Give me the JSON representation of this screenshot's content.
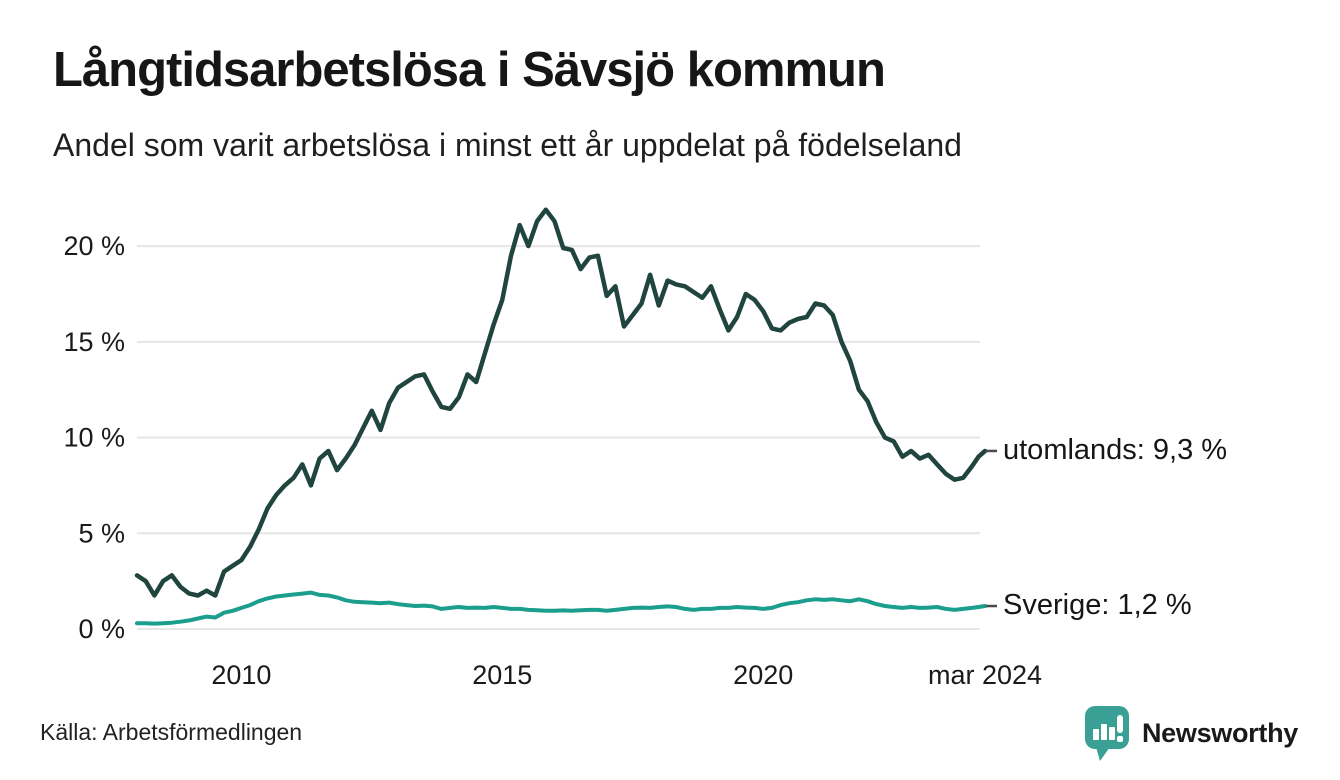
{
  "header": {
    "title": "Långtidsarbetslösa i Sävsjö kommun",
    "subtitle": "Andel som varit arbetslösa i minst ett år uppdelat på födelseland"
  },
  "footer": {
    "source": "Källa: Arbetsförmedlingen",
    "brand": "Newsworthy"
  },
  "colors": {
    "utomlands_line": "#20453e",
    "sverige_line": "#1b9e8e",
    "brand_teal": "#3aa096",
    "brand_text": "#35988f",
    "gridline": "#e6e6e6",
    "axis_text": "#1a1a1a",
    "end_tick": "#4a4a4a",
    "background": "#ffffff"
  },
  "chart_data": {
    "type": "line",
    "title": "Långtidsarbetslösa i Sävsjö kommun",
    "subtitle": "Andel som varit arbetslösa i minst ett år uppdelat på födelseland",
    "xlabel": "",
    "ylabel": "",
    "unit": "%",
    "grid": "horizontal",
    "legend_position": "end-of-line-labels",
    "x_range": [
      2008.0,
      2024.25
    ],
    "ylim": [
      0,
      22.2
    ],
    "y_ticks": [
      {
        "value": 0,
        "label": "0 %"
      },
      {
        "value": 5,
        "label": "5 %"
      },
      {
        "value": 10,
        "label": "10 %"
      },
      {
        "value": 15,
        "label": "15 %"
      },
      {
        "value": 20,
        "label": "20 %"
      }
    ],
    "x_ticks": [
      {
        "value": 2010,
        "label": "2010"
      },
      {
        "value": 2015,
        "label": "2015"
      },
      {
        "value": 2020,
        "label": "2020"
      },
      {
        "value": 2024.25,
        "label": "mar 2024"
      }
    ],
    "x": [
      2008,
      2008.167,
      2008.333,
      2008.5,
      2008.667,
      2008.833,
      2009,
      2009.167,
      2009.333,
      2009.5,
      2009.667,
      2009.833,
      2010,
      2010.167,
      2010.333,
      2010.5,
      2010.667,
      2010.833,
      2011,
      2011.167,
      2011.333,
      2011.5,
      2011.667,
      2011.833,
      2012,
      2012.167,
      2012.333,
      2012.5,
      2012.667,
      2012.833,
      2013,
      2013.167,
      2013.333,
      2013.5,
      2013.667,
      2013.833,
      2014,
      2014.167,
      2014.333,
      2014.5,
      2014.667,
      2014.833,
      2015,
      2015.167,
      2015.333,
      2015.5,
      2015.667,
      2015.833,
      2016,
      2016.167,
      2016.333,
      2016.5,
      2016.667,
      2016.833,
      2017,
      2017.167,
      2017.333,
      2017.5,
      2017.667,
      2017.833,
      2018,
      2018.167,
      2018.333,
      2018.5,
      2018.667,
      2018.833,
      2019,
      2019.167,
      2019.333,
      2019.5,
      2019.667,
      2019.833,
      2020,
      2020.167,
      2020.333,
      2020.5,
      2020.667,
      2020.833,
      2021,
      2021.167,
      2021.333,
      2021.5,
      2021.667,
      2021.833,
      2022,
      2022.167,
      2022.333,
      2022.5,
      2022.667,
      2022.833,
      2023,
      2023.167,
      2023.333,
      2023.5,
      2023.667,
      2023.833,
      2024,
      2024.125,
      2024.25
    ],
    "series": [
      {
        "name": "utomlands",
        "end_label": "utomlands: 9,3 %",
        "last_value": 9.3,
        "color": "#20453e",
        "values": [
          2.8,
          2.5,
          1.75,
          2.5,
          2.8,
          2.2,
          1.85,
          1.75,
          2.0,
          1.75,
          3.0,
          3.3,
          3.6,
          4.3,
          5.2,
          6.3,
          7.0,
          7.5,
          7.9,
          8.6,
          7.5,
          8.9,
          9.3,
          8.3,
          8.9,
          9.6,
          10.5,
          11.4,
          10.4,
          11.8,
          12.6,
          12.9,
          13.2,
          13.3,
          12.4,
          11.6,
          11.5,
          12.1,
          13.3,
          12.9,
          14.4,
          15.9,
          17.2,
          19.5,
          21.1,
          20.0,
          21.3,
          21.9,
          21.3,
          19.9,
          19.8,
          18.8,
          19.4,
          19.5,
          17.4,
          17.9,
          15.8,
          16.4,
          17.0,
          18.5,
          16.9,
          18.2,
          18.0,
          17.9,
          17.6,
          17.3,
          17.9,
          16.7,
          15.6,
          16.3,
          17.5,
          17.2,
          16.6,
          15.7,
          15.6,
          16.0,
          16.2,
          16.3,
          17.0,
          16.9,
          16.4,
          15.0,
          14.0,
          12.5,
          11.9,
          10.8,
          10.0,
          9.8,
          9.0,
          9.3,
          8.9,
          9.1,
          8.6,
          8.1,
          7.8,
          7.9,
          8.5,
          9.0,
          9.3
        ]
      },
      {
        "name": "Sverige",
        "end_label": "Sverige: 1,2 %",
        "last_value": 1.2,
        "color": "#1b9e8e",
        "values": [
          0.3,
          0.3,
          0.28,
          0.3,
          0.33,
          0.38,
          0.45,
          0.55,
          0.65,
          0.6,
          0.85,
          0.95,
          1.1,
          1.25,
          1.45,
          1.6,
          1.7,
          1.75,
          1.8,
          1.85,
          1.9,
          1.78,
          1.75,
          1.65,
          1.5,
          1.42,
          1.4,
          1.38,
          1.35,
          1.38,
          1.3,
          1.25,
          1.2,
          1.22,
          1.18,
          1.05,
          1.1,
          1.15,
          1.1,
          1.12,
          1.1,
          1.15,
          1.1,
          1.05,
          1.05,
          1.0,
          0.98,
          0.95,
          0.95,
          0.97,
          0.95,
          0.98,
          1.0,
          1.0,
          0.95,
          1.0,
          1.05,
          1.1,
          1.12,
          1.1,
          1.15,
          1.18,
          1.15,
          1.05,
          1.0,
          1.05,
          1.05,
          1.1,
          1.1,
          1.15,
          1.12,
          1.1,
          1.05,
          1.1,
          1.25,
          1.35,
          1.4,
          1.5,
          1.55,
          1.52,
          1.55,
          1.5,
          1.45,
          1.55,
          1.45,
          1.3,
          1.2,
          1.15,
          1.1,
          1.15,
          1.1,
          1.12,
          1.15,
          1.05,
          1.0,
          1.05,
          1.1,
          1.15,
          1.2
        ]
      }
    ]
  }
}
